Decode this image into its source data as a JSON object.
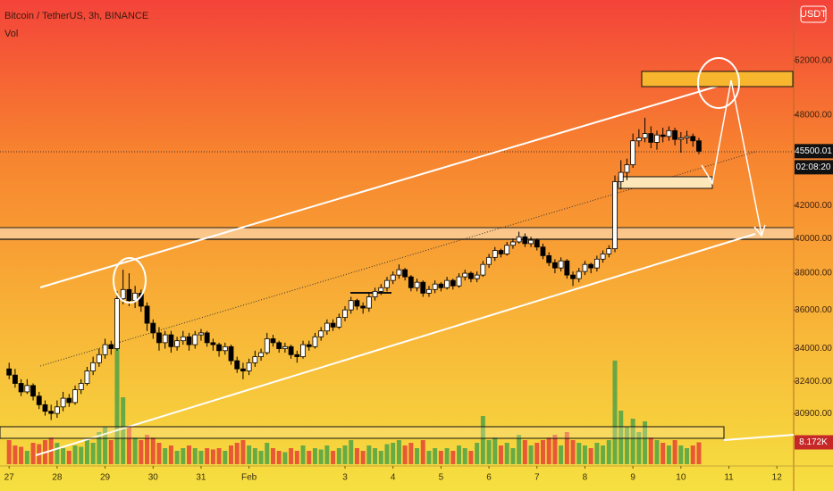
{
  "chart_data": {
    "type": "candlestick",
    "title": "Bitcoin / TetherUS, 3h, BINANCE",
    "currency": "USDT",
    "countdown": "02:08:20",
    "log_scale": true,
    "up_color": "#ffffff",
    "down_color": "#000000",
    "ylim": [
      28670,
      56870
    ],
    "yticks": [
      {
        "value": 52000,
        "label": "52000.00"
      },
      {
        "value": 48000,
        "label": "48000.00"
      },
      {
        "value": 42000,
        "label": "42000.00"
      },
      {
        "value": 40000,
        "label": "40000.00"
      },
      {
        "value": 38000,
        "label": "38000.00"
      },
      {
        "value": 36000,
        "label": "36000.00"
      },
      {
        "value": 34000,
        "label": "34000.00"
      },
      {
        "value": 32400,
        "label": "32400.00"
      },
      {
        "value": 30900,
        "label": "30900.00"
      }
    ],
    "xlim": [
      -0.19,
      16.35
    ],
    "xticks": [
      {
        "value": 0,
        "label": "27"
      },
      {
        "value": 1,
        "label": "28"
      },
      {
        "value": 2,
        "label": "29"
      },
      {
        "value": 3,
        "label": "30"
      },
      {
        "value": 4,
        "label": "31"
      },
      {
        "value": 5,
        "label": "Feb"
      },
      {
        "value": 7,
        "label": "3"
      },
      {
        "value": 8,
        "label": "4"
      },
      {
        "value": 9,
        "label": "5"
      },
      {
        "value": 10,
        "label": "6"
      },
      {
        "value": 11,
        "label": "7"
      },
      {
        "value": 12,
        "label": "8"
      },
      {
        "value": 13,
        "label": "9"
      },
      {
        "value": 14,
        "label": "10"
      },
      {
        "value": 15,
        "label": "11"
      },
      {
        "value": 16,
        "label": "12"
      }
    ],
    "x": [
      0,
      0.125,
      0.25,
      0.375,
      0.5,
      0.625,
      0.75,
      0.875,
      1,
      1.125,
      1.25,
      1.375,
      1.5,
      1.625,
      1.75,
      1.875,
      2,
      2.125,
      2.25,
      2.375,
      2.5,
      2.625,
      2.75,
      2.875,
      3,
      3.125,
      3.25,
      3.375,
      3.5,
      3.625,
      3.75,
      3.875,
      4,
      4.125,
      4.25,
      4.375,
      4.5,
      4.625,
      4.75,
      4.875,
      5,
      5.125,
      5.25,
      5.375,
      5.5,
      5.625,
      5.75,
      5.875,
      6,
      6.125,
      6.25,
      6.375,
      6.5,
      6.625,
      6.75,
      6.875,
      7,
      7.125,
      7.25,
      7.375,
      7.5,
      7.625,
      7.75,
      7.875,
      8,
      8.125,
      8.25,
      8.375,
      8.5,
      8.625,
      8.75,
      8.875,
      9,
      9.125,
      9.25,
      9.375,
      9.5,
      9.625,
      9.75,
      9.875,
      10,
      10.125,
      10.25,
      10.375,
      10.5,
      10.625,
      10.75,
      10.875,
      11,
      11.125,
      11.25,
      11.375,
      11.5,
      11.625,
      11.75,
      11.875,
      12,
      12.125,
      12.25,
      12.375,
      12.5,
      12.625,
      12.75,
      12.875,
      13,
      13.125,
      13.25,
      13.375,
      13.5,
      13.625,
      13.75,
      13.875,
      14,
      14.125,
      14.25,
      14.375
    ],
    "candles": [
      [
        33000,
        33300,
        32500,
        32700
      ],
      [
        32700,
        33000,
        32100,
        32300
      ],
      [
        32300,
        32500,
        31700,
        31900
      ],
      [
        31900,
        32500,
        31800,
        32200
      ],
      [
        32200,
        32300,
        31500,
        31700
      ],
      [
        31700,
        31900,
        31100,
        31300
      ],
      [
        31300,
        31500,
        30800,
        31000
      ],
      [
        31000,
        31300,
        30600,
        30900
      ],
      [
        30900,
        31500,
        30700,
        31200
      ],
      [
        31200,
        31900,
        31000,
        31600
      ],
      [
        31600,
        31800,
        31200,
        31400
      ],
      [
        31400,
        32200,
        31300,
        32000
      ],
      [
        32000,
        32500,
        31800,
        32300
      ],
      [
        32300,
        33100,
        32200,
        32900
      ],
      [
        32900,
        33600,
        32700,
        33300
      ],
      [
        33300,
        34000,
        33100,
        33700
      ],
      [
        33700,
        34500,
        33500,
        34200
      ],
      [
        34200,
        34400,
        33700,
        34000
      ],
      [
        34000,
        37000,
        33900,
        36600
      ],
      [
        36600,
        38200,
        36300,
        37100
      ],
      [
        37100,
        38000,
        36200,
        36500
      ],
      [
        36500,
        37300,
        36100,
        36900
      ],
      [
        36900,
        37100,
        35900,
        36200
      ],
      [
        36200,
        36400,
        34900,
        35300
      ],
      [
        35300,
        35500,
        34500,
        34800
      ],
      [
        34800,
        35100,
        33900,
        34300
      ],
      [
        34300,
        34900,
        34000,
        34700
      ],
      [
        34700,
        34900,
        33800,
        34100
      ],
      [
        34100,
        34600,
        33900,
        34400
      ],
      [
        34400,
        34900,
        34200,
        34600
      ],
      [
        34600,
        34800,
        33900,
        34200
      ],
      [
        34200,
        34900,
        34000,
        34700
      ],
      [
        34700,
        35000,
        34400,
        34800
      ],
      [
        34800,
        34900,
        34100,
        34300
      ],
      [
        34300,
        34500,
        33900,
        34200
      ],
      [
        34200,
        34300,
        33600,
        33900
      ],
      [
        33900,
        34300,
        33700,
        34100
      ],
      [
        34100,
        34200,
        33200,
        33400
      ],
      [
        33400,
        33600,
        32800,
        33000
      ],
      [
        33000,
        33300,
        32500,
        32900
      ],
      [
        32900,
        33500,
        32700,
        33300
      ],
      [
        33300,
        33900,
        33100,
        33600
      ],
      [
        33600,
        34000,
        33400,
        33800
      ],
      [
        33800,
        34800,
        33700,
        34500
      ],
      [
        34500,
        34700,
        34100,
        34300
      ],
      [
        34300,
        34400,
        33800,
        34000
      ],
      [
        34000,
        34300,
        33800,
        34100
      ],
      [
        34100,
        34200,
        33500,
        33700
      ],
      [
        33700,
        33900,
        33300,
        33600
      ],
      [
        33600,
        34400,
        33500,
        34200
      ],
      [
        34200,
        34400,
        33900,
        34100
      ],
      [
        34100,
        34800,
        34000,
        34600
      ],
      [
        34600,
        35100,
        34400,
        34900
      ],
      [
        34900,
        35500,
        34700,
        35300
      ],
      [
        35300,
        35500,
        34900,
        35100
      ],
      [
        35100,
        35800,
        35000,
        35600
      ],
      [
        35600,
        36200,
        35400,
        36000
      ],
      [
        36000,
        36700,
        35800,
        36500
      ],
      [
        36500,
        36600,
        36000,
        36200
      ],
      [
        36200,
        36400,
        35800,
        36100
      ],
      [
        36100,
        36900,
        35900,
        36700
      ],
      [
        36700,
        37200,
        36500,
        37000
      ],
      [
        37000,
        37400,
        36800,
        37200
      ],
      [
        37200,
        37800,
        37000,
        37600
      ],
      [
        37600,
        38100,
        37400,
        37900
      ],
      [
        37900,
        38500,
        37700,
        38200
      ],
      [
        38200,
        38300,
        37600,
        37800
      ],
      [
        37800,
        37900,
        37000,
        37200
      ],
      [
        37200,
        37700,
        37000,
        37500
      ],
      [
        37500,
        37600,
        36700,
        36900
      ],
      [
        36900,
        37300,
        36700,
        37100
      ],
      [
        37100,
        37600,
        36900,
        37400
      ],
      [
        37400,
        37500,
        37000,
        37200
      ],
      [
        37200,
        37800,
        37100,
        37600
      ],
      [
        37600,
        37700,
        37100,
        37300
      ],
      [
        37300,
        38000,
        37200,
        37800
      ],
      [
        37800,
        38200,
        37600,
        38000
      ],
      [
        38000,
        38100,
        37500,
        37700
      ],
      [
        37700,
        38100,
        37500,
        37900
      ],
      [
        37900,
        38700,
        37800,
        38500
      ],
      [
        38500,
        39100,
        38300,
        38900
      ],
      [
        38900,
        39500,
        38700,
        39300
      ],
      [
        39300,
        39400,
        38900,
        39100
      ],
      [
        39100,
        39800,
        39000,
        39600
      ],
      [
        39600,
        40000,
        39400,
        39800
      ],
      [
        39800,
        40400,
        39700,
        40100
      ],
      [
        40100,
        40300,
        39500,
        39700
      ],
      [
        39700,
        40100,
        39500,
        39900
      ],
      [
        39900,
        40000,
        39300,
        39500
      ],
      [
        39500,
        39700,
        38800,
        39000
      ],
      [
        39000,
        39200,
        38400,
        38600
      ],
      [
        38600,
        38800,
        38000,
        38300
      ],
      [
        38300,
        38900,
        38100,
        38700
      ],
      [
        38700,
        38800,
        37700,
        37900
      ],
      [
        37900,
        38100,
        37300,
        37700
      ],
      [
        37700,
        38300,
        37500,
        38100
      ],
      [
        38100,
        38700,
        37900,
        38500
      ],
      [
        38500,
        38600,
        38000,
        38300
      ],
      [
        38300,
        39000,
        38100,
        38800
      ],
      [
        38800,
        39300,
        38600,
        39100
      ],
      [
        39100,
        39600,
        38900,
        39400
      ],
      [
        39400,
        43900,
        39200,
        43500
      ],
      [
        43500,
        44900,
        43000,
        44100
      ],
      [
        44100,
        45000,
        43600,
        44600
      ],
      [
        44600,
        46700,
        44400,
        46200
      ],
      [
        46200,
        47000,
        45800,
        46400
      ],
      [
        46400,
        47800,
        46100,
        46700
      ],
      [
        46700,
        47200,
        45700,
        46100
      ],
      [
        46100,
        46900,
        45600,
        46600
      ],
      [
        46600,
        47100,
        46100,
        46500
      ],
      [
        46500,
        47200,
        46200,
        46900
      ],
      [
        46900,
        47100,
        45900,
        46300
      ],
      [
        46300,
        46800,
        45400,
        46400
      ],
      [
        46400,
        46900,
        46000,
        46500
      ],
      [
        46500,
        46700,
        45800,
        46200
      ],
      [
        46200,
        46400,
        45300,
        45500.01
      ]
    ],
    "volume": {
      "name": "Vol",
      "up_color": "#43a047",
      "down_color": "#e53935",
      "ylim": [
        0,
        50000
      ],
      "last_value_label": "8.172K",
      "values": [
        9000,
        7000,
        6500,
        5000,
        8000,
        7500,
        9000,
        10000,
        8000,
        6000,
        5000,
        7000,
        6500,
        9000,
        8000,
        12000,
        14000,
        9000,
        44000,
        25000,
        14000,
        10000,
        9000,
        11000,
        10000,
        8000,
        6000,
        7000,
        5000,
        6000,
        7000,
        6000,
        5000,
        6000,
        5500,
        6000,
        5000,
        7000,
        8000,
        9000,
        7000,
        6000,
        5000,
        8000,
        6000,
        5000,
        4500,
        6000,
        5000,
        7000,
        5000,
        6000,
        5500,
        7000,
        5000,
        6000,
        7000,
        9000,
        6000,
        5000,
        7000,
        6000,
        5000,
        7500,
        8000,
        9000,
        7000,
        8000,
        6000,
        9000,
        5000,
        6000,
        5000,
        6000,
        5000,
        7000,
        6000,
        5000,
        8000,
        18000,
        9000,
        10000,
        7000,
        8000,
        6000,
        11000,
        9000,
        7000,
        8000,
        9000,
        10000,
        11000,
        7000,
        12000,
        9000,
        8000,
        7000,
        6000,
        8000,
        7000,
        9000,
        38700,
        20000,
        14000,
        17000,
        12000,
        16000,
        10000,
        9000,
        8000,
        7000,
        9000,
        7000,
        6000,
        7000,
        8172
      ]
    }
  }
}
